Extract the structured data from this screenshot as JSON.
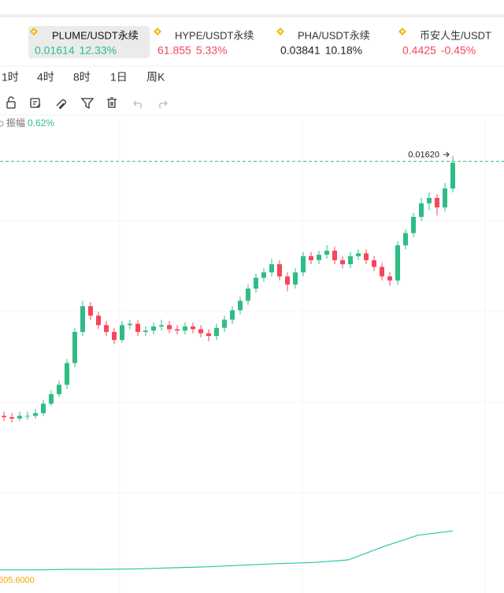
{
  "tabs": [
    {
      "symbol": "PLUME/USDT永续",
      "price": "0.01614",
      "change": "12.33%"
    },
    {
      "symbol": "HYPE/USDT永续",
      "price": "61.855",
      "change": "5.33%"
    },
    {
      "symbol": "PHA/USDT永续",
      "price": "0.03841",
      "change": "10.18%"
    },
    {
      "symbol": "币安人生/USDT",
      "price": "0.4425",
      "change": "-0.45%"
    }
  ],
  "timeframes": [
    "1时",
    "4时",
    "8时",
    "1日",
    "周K"
  ],
  "amplitude": {
    "label": "振幅",
    "value": "0.62%"
  },
  "chart_data": {
    "type": "candlestick",
    "up_color": "#2ebd85",
    "down_color": "#f6465d",
    "ylim": [
      0.01378,
      0.01653
    ],
    "open": [
      0.01432,
      0.01431,
      0.0143,
      0.01432,
      0.01432,
      0.01434,
      0.01441,
      0.01448,
      0.01455,
      0.01471,
      0.01494,
      0.01513,
      0.01506,
      0.01499,
      0.01494,
      0.01488,
      0.01499,
      0.015,
      0.01494,
      0.01495,
      0.01498,
      0.01499,
      0.01496,
      0.01495,
      0.01498,
      0.01496,
      0.01493,
      0.01491,
      0.01497,
      0.01503,
      0.0151,
      0.01517,
      0.01526,
      0.01534,
      0.01538,
      0.01544,
      0.01535,
      0.01529,
      0.01538,
      0.0155,
      0.01547,
      0.01551,
      0.01554,
      0.01547,
      0.01544,
      0.0155,
      0.01552,
      0.01547,
      0.01542,
      0.01535,
      0.01532,
      0.01558,
      0.01567,
      0.01579,
      0.01589,
      0.01593,
      0.01586,
      0.016
    ],
    "high": [
      0.01435,
      0.01434,
      0.01435,
      0.01435,
      0.01437,
      0.01444,
      0.01451,
      0.01458,
      0.01474,
      0.01497,
      0.01517,
      0.01516,
      0.01509,
      0.01502,
      0.01497,
      0.01502,
      0.01503,
      0.01503,
      0.01498,
      0.01501,
      0.01503,
      0.01502,
      0.01499,
      0.01501,
      0.01501,
      0.01499,
      0.01496,
      0.015,
      0.01506,
      0.01513,
      0.0152,
      0.01529,
      0.01537,
      0.01541,
      0.01548,
      0.01547,
      0.01538,
      0.01541,
      0.01553,
      0.01553,
      0.01554,
      0.01558,
      0.01557,
      0.0155,
      0.01553,
      0.01555,
      0.01555,
      0.0155,
      0.01545,
      0.01538,
      0.01561,
      0.0157,
      0.01582,
      0.01593,
      0.01597,
      0.01596,
      0.01604,
      0.01624
    ],
    "low": [
      0.01428,
      0.01427,
      0.01428,
      0.01429,
      0.0143,
      0.01432,
      0.01439,
      0.01446,
      0.01452,
      0.01468,
      0.01491,
      0.01503,
      0.01496,
      0.01491,
      0.01485,
      0.01486,
      0.01496,
      0.01491,
      0.01491,
      0.01492,
      0.01495,
      0.01493,
      0.01492,
      0.01492,
      0.01493,
      0.0149,
      0.01487,
      0.01488,
      0.01494,
      0.015,
      0.01507,
      0.01514,
      0.01523,
      0.01531,
      0.01535,
      0.01532,
      0.01524,
      0.01526,
      0.01535,
      0.01544,
      0.01544,
      0.01548,
      0.01544,
      0.01541,
      0.01541,
      0.01547,
      0.01544,
      0.01539,
      0.01532,
      0.01528,
      0.01529,
      0.01555,
      0.01564,
      0.01576,
      0.01584,
      0.0158,
      0.01583,
      0.01597
    ],
    "close": [
      0.01431,
      0.0143,
      0.01432,
      0.01432,
      0.01434,
      0.01441,
      0.01448,
      0.01455,
      0.01471,
      0.01494,
      0.01513,
      0.01506,
      0.01499,
      0.01494,
      0.01488,
      0.01499,
      0.015,
      0.01494,
      0.01495,
      0.01498,
      0.01499,
      0.01496,
      0.01495,
      0.01498,
      0.01496,
      0.01493,
      0.01491,
      0.01497,
      0.01503,
      0.0151,
      0.01517,
      0.01526,
      0.01534,
      0.01538,
      0.01544,
      0.01535,
      0.01529,
      0.01538,
      0.0155,
      0.01547,
      0.01551,
      0.01554,
      0.01547,
      0.01544,
      0.0155,
      0.01552,
      0.01547,
      0.01542,
      0.01535,
      0.01532,
      0.01558,
      0.01567,
      0.01579,
      0.01589,
      0.01593,
      0.01586,
      0.016,
      0.01619
    ],
    "last_price": {
      "value": 0.0162,
      "label": "0.01620"
    },
    "indicator": {
      "label": "605.6000",
      "color": "#26c6b0",
      "ylim": [
        580,
        700
      ],
      "values": [
        606,
        606,
        607,
        607,
        608,
        610,
        612,
        615,
        618,
        620,
        625,
        650,
        672,
        680
      ]
    }
  }
}
